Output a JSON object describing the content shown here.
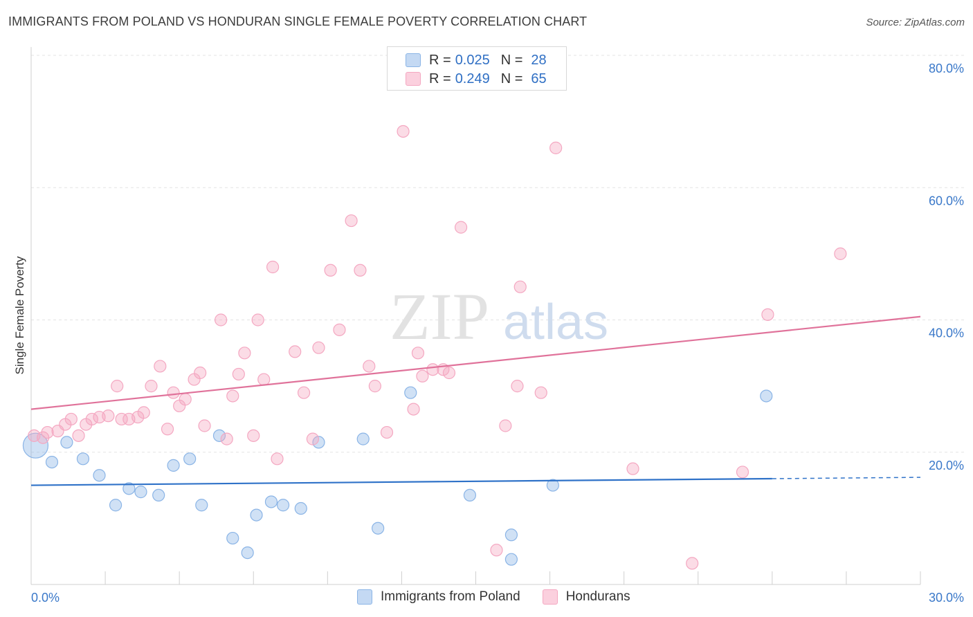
{
  "header": {
    "title": "IMMIGRANTS FROM POLAND VS HONDURAN SINGLE FEMALE POVERTY CORRELATION CHART",
    "source": "Source: ZipAtlas.com"
  },
  "watermark": {
    "zip": "ZIP",
    "atlas": "atlas"
  },
  "legend_top": {
    "rows": [
      {
        "r_label": "R =",
        "r_value": "0.025",
        "n_label": "N =",
        "n_value": "28"
      },
      {
        "r_label": "R =",
        "r_value": "0.249",
        "n_label": "N =",
        "n_value": "65"
      }
    ]
  },
  "legend_bottom": {
    "items": [
      {
        "label": "Immigrants from Poland"
      },
      {
        "label": "Hondurans"
      }
    ]
  },
  "chart_data": {
    "type": "scatter",
    "title": "IMMIGRANTS FROM POLAND VS HONDURAN SINGLE FEMALE POVERTY CORRELATION CHART",
    "xlabel": "",
    "ylabel": "Single Female Poverty",
    "xlim": [
      0,
      30
    ],
    "ylim": [
      0,
      80
    ],
    "x_tick_labels": [
      "0.0%",
      "30.0%"
    ],
    "y_ticks": [
      20,
      40,
      60,
      80
    ],
    "y_tick_labels": [
      "20.0%",
      "40.0%",
      "60.0%",
      "80.0%"
    ],
    "grid": "horizontal dashed",
    "legend_position": "bottom",
    "series": [
      {
        "name": "Immigrants from Poland",
        "color": "#8ab4e6",
        "line_color": "#2f72c8",
        "trend": {
          "x": [
            0,
            25
          ],
          "y": [
            15.0,
            16.0
          ],
          "dashed_extension_to": 30
        },
        "points": [
          [
            0.15,
            21.0
          ],
          [
            0.7,
            18.5
          ],
          [
            1.2,
            21.5
          ],
          [
            1.75,
            19.0
          ],
          [
            2.3,
            16.5
          ],
          [
            2.85,
            12.0
          ],
          [
            3.3,
            14.5
          ],
          [
            3.7,
            14.0
          ],
          [
            4.3,
            13.5
          ],
          [
            4.8,
            18.0
          ],
          [
            5.35,
            19.0
          ],
          [
            5.75,
            12.0
          ],
          [
            6.35,
            22.5
          ],
          [
            6.8,
            7.0
          ],
          [
            7.3,
            4.8
          ],
          [
            7.6,
            10.5
          ],
          [
            8.1,
            12.5
          ],
          [
            8.5,
            12.0
          ],
          [
            9.1,
            11.5
          ],
          [
            9.7,
            21.5
          ],
          [
            11.2,
            22.0
          ],
          [
            11.7,
            8.5
          ],
          [
            12.8,
            29.0
          ],
          [
            14.8,
            13.5
          ],
          [
            16.2,
            3.8
          ],
          [
            16.2,
            7.5
          ],
          [
            17.6,
            15.0
          ],
          [
            24.8,
            28.5
          ]
        ]
      },
      {
        "name": "Hondurans",
        "color": "#f4a7c1",
        "line_color": "#e0729a",
        "trend": {
          "x": [
            0,
            30
          ],
          "y": [
            26.5,
            40.5
          ]
        },
        "points": [
          [
            0.1,
            22.5
          ],
          [
            0.4,
            22.2
          ],
          [
            0.55,
            23.0
          ],
          [
            0.9,
            23.2
          ],
          [
            1.15,
            24.2
          ],
          [
            1.35,
            25.0
          ],
          [
            1.6,
            22.5
          ],
          [
            1.85,
            24.2
          ],
          [
            2.05,
            25.0
          ],
          [
            2.3,
            25.3
          ],
          [
            2.6,
            25.5
          ],
          [
            2.9,
            30.0
          ],
          [
            3.05,
            25.0
          ],
          [
            3.3,
            25.0
          ],
          [
            3.6,
            25.3
          ],
          [
            3.8,
            26.0
          ],
          [
            4.05,
            30.0
          ],
          [
            4.35,
            33.0
          ],
          [
            4.6,
            23.5
          ],
          [
            4.8,
            29.0
          ],
          [
            5.0,
            27.0
          ],
          [
            5.2,
            28.0
          ],
          [
            5.5,
            31.0
          ],
          [
            5.7,
            32.0
          ],
          [
            5.85,
            24.0
          ],
          [
            6.4,
            40.0
          ],
          [
            6.6,
            22.0
          ],
          [
            6.8,
            28.5
          ],
          [
            7.0,
            31.8
          ],
          [
            7.2,
            35.0
          ],
          [
            7.5,
            22.5
          ],
          [
            7.65,
            40.0
          ],
          [
            7.85,
            31.0
          ],
          [
            8.15,
            48.0
          ],
          [
            8.3,
            19.0
          ],
          [
            8.9,
            35.2
          ],
          [
            9.2,
            29.0
          ],
          [
            9.5,
            22.0
          ],
          [
            9.7,
            35.8
          ],
          [
            10.1,
            47.5
          ],
          [
            10.4,
            38.5
          ],
          [
            10.8,
            55.0
          ],
          [
            11.1,
            47.5
          ],
          [
            11.4,
            33.0
          ],
          [
            11.6,
            30.0
          ],
          [
            12.0,
            23.0
          ],
          [
            12.55,
            68.5
          ],
          [
            12.9,
            26.5
          ],
          [
            13.05,
            35.0
          ],
          [
            13.2,
            31.5
          ],
          [
            13.55,
            32.5
          ],
          [
            13.9,
            32.5
          ],
          [
            14.5,
            54.0
          ],
          [
            15.7,
            5.2
          ],
          [
            16.0,
            24.0
          ],
          [
            16.4,
            30.0
          ],
          [
            16.5,
            45.0
          ],
          [
            17.2,
            29.0
          ],
          [
            17.7,
            66.0
          ],
          [
            20.3,
            17.5
          ],
          [
            22.3,
            3.2
          ],
          [
            24.0,
            17.0
          ],
          [
            24.85,
            40.8
          ],
          [
            27.3,
            50.0
          ],
          [
            14.1,
            32.0
          ]
        ]
      }
    ]
  }
}
